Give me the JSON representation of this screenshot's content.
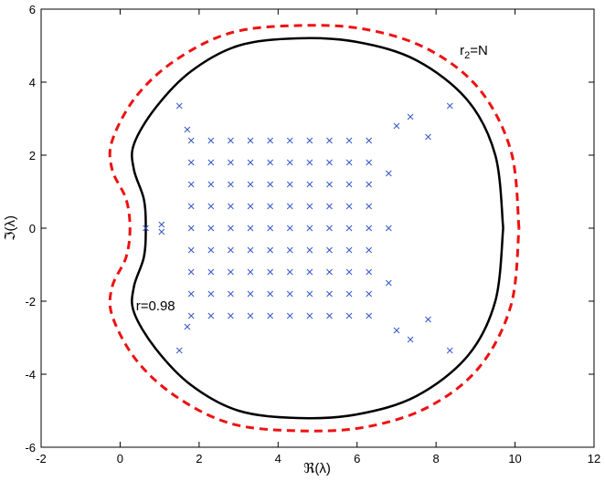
{
  "chart_data": {
    "type": "scatter",
    "xlabel": "ℜ(λ)",
    "ylabel": "ℑ(λ)",
    "xlim": [
      -2,
      12
    ],
    "ylim": [
      -6,
      6
    ],
    "xticks": [
      -2,
      0,
      2,
      4,
      6,
      8,
      10,
      12
    ],
    "yticks": [
      -6,
      -4,
      -2,
      0,
      2,
      4,
      6
    ],
    "annotations": [
      {
        "parts": [
          "r=0.98"
        ],
        "x": 0.4,
        "y": -2.25
      },
      {
        "parts": [
          "r",
          "2",
          "=N"
        ],
        "x": 8.6,
        "y": 4.75
      }
    ],
    "curves": [
      {
        "color": "#000000",
        "dashed": false,
        "x": [
          9.7,
          9.5,
          8.8,
          7.5,
          6,
          4.5,
          3,
          1.8,
          0.9,
          0.35,
          0.35,
          0.6,
          0.65,
          0.6,
          0.35,
          0.35,
          0.9,
          1.8,
          3,
          4.5,
          6,
          7.5,
          8.8,
          9.5,
          9.7
        ],
        "y": [
          0,
          2,
          3.5,
          4.6,
          5.1,
          5.2,
          5.0,
          4.3,
          3.3,
          2.3,
          1.6,
          0.8,
          0,
          -0.8,
          -1.6,
          -2.3,
          -3.3,
          -4.3,
          -5.0,
          -5.2,
          -5.1,
          -4.6,
          -3.5,
          -2,
          0
        ]
      },
      {
        "color": "#ee1111",
        "dashed": true,
        "x": [
          10.1,
          9.9,
          9.1,
          7.8,
          6.2,
          4.5,
          2.8,
          1.4,
          0.4,
          -0.2,
          -0.2,
          0.15,
          0.25,
          0.15,
          -0.2,
          -0.2,
          0.4,
          1.4,
          2.8,
          4.5,
          6.2,
          7.8,
          9.1,
          9.9,
          10.1
        ],
        "y": [
          0,
          2.1,
          3.8,
          4.9,
          5.45,
          5.55,
          5.35,
          4.6,
          3.6,
          2.4,
          1.6,
          0.8,
          0,
          -0.8,
          -1.6,
          -2.4,
          -3.6,
          -4.6,
          -5.35,
          -5.55,
          -5.45,
          -4.9,
          -3.8,
          -2.1,
          0
        ]
      }
    ],
    "points": {
      "color": "#3355cc",
      "x": [
        1.8,
        1.8,
        1.8,
        1.8,
        1.8,
        1.8,
        1.8,
        1.8,
        1.8,
        2.3,
        2.3,
        2.3,
        2.3,
        2.3,
        2.3,
        2.3,
        2.3,
        2.3,
        2.8,
        2.8,
        2.8,
        2.8,
        2.8,
        2.8,
        2.8,
        2.8,
        2.8,
        3.3,
        3.3,
        3.3,
        3.3,
        3.3,
        3.3,
        3.3,
        3.3,
        3.3,
        3.8,
        3.8,
        3.8,
        3.8,
        3.8,
        3.8,
        3.8,
        3.8,
        3.8,
        4.3,
        4.3,
        4.3,
        4.3,
        4.3,
        4.3,
        4.3,
        4.3,
        4.3,
        4.8,
        4.8,
        4.8,
        4.8,
        4.8,
        4.8,
        4.8,
        4.8,
        4.8,
        5.3,
        5.3,
        5.3,
        5.3,
        5.3,
        5.3,
        5.3,
        5.3,
        5.3,
        5.8,
        5.8,
        5.8,
        5.8,
        5.8,
        5.8,
        5.8,
        5.8,
        5.8,
        6.3,
        6.3,
        6.3,
        6.3,
        6.3,
        6.3,
        6.3,
        6.3,
        6.3,
        0.65,
        1.05,
        1.05,
        1.5,
        1.5,
        1.7,
        1.7,
        8.35,
        8.35,
        7.35,
        7.35,
        7.8,
        7.8,
        7.0,
        7.0,
        6.8,
        6.8,
        6.8
      ],
      "y": [
        2.4,
        1.8,
        1.2,
        0.6,
        0,
        -0.6,
        -1.2,
        -1.8,
        -2.4,
        2.4,
        1.8,
        1.2,
        0.6,
        0,
        -0.6,
        -1.2,
        -1.8,
        -2.4,
        2.4,
        1.8,
        1.2,
        0.6,
        0,
        -0.6,
        -1.2,
        -1.8,
        -2.4,
        2.4,
        1.8,
        1.2,
        0.6,
        0,
        -0.6,
        -1.2,
        -1.8,
        -2.4,
        2.4,
        1.8,
        1.2,
        0.6,
        0,
        -0.6,
        -1.2,
        -1.8,
        -2.4,
        2.4,
        1.8,
        1.2,
        0.6,
        0,
        -0.6,
        -1.2,
        -1.8,
        -2.4,
        2.4,
        1.8,
        1.2,
        0.6,
        0,
        -0.6,
        -1.2,
        -1.8,
        -2.4,
        2.4,
        1.8,
        1.2,
        0.6,
        0,
        -0.6,
        -1.2,
        -1.8,
        -2.4,
        2.4,
        1.8,
        1.2,
        0.6,
        0,
        -0.6,
        -1.2,
        -1.8,
        -2.4,
        2.4,
        1.8,
        1.2,
        0.6,
        0,
        -0.6,
        -1.2,
        -1.8,
        -2.4,
        0,
        0.1,
        -0.1,
        3.35,
        -3.35,
        2.7,
        -2.7,
        3.35,
        -3.35,
        3.05,
        -3.05,
        2.5,
        -2.5,
        2.8,
        -2.8,
        1.5,
        -1.5,
        0
      ]
    }
  }
}
